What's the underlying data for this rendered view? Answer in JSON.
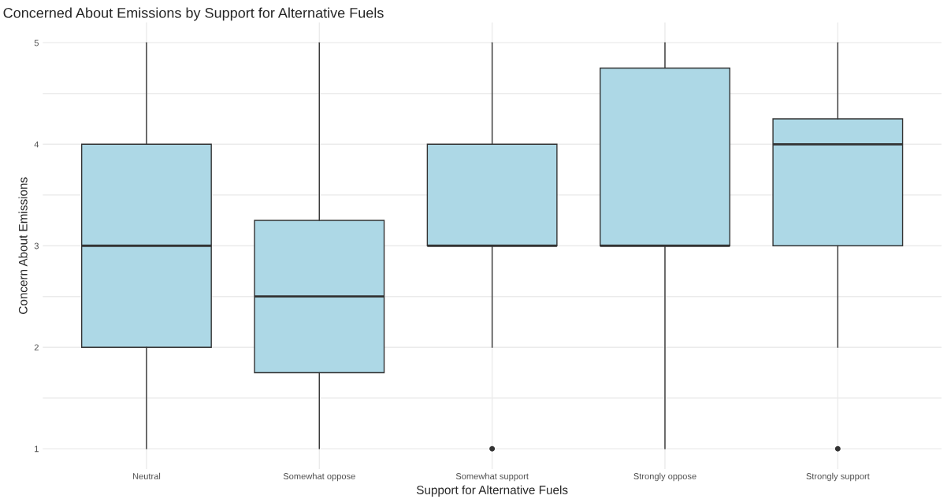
{
  "chart_data": {
    "type": "box",
    "title": "Concerned About Emissions by Support for Alternative Fuels",
    "xlabel": "Support for Alternative Fuels",
    "ylabel": "Concern About Emissions",
    "categories": [
      "Neutral",
      "Somewhat oppose",
      "Somewhat support",
      "Strongly oppose",
      "Strongly support"
    ],
    "boxes": [
      {
        "low": 1,
        "q1": 2,
        "median": 3,
        "q3": 4,
        "high": 5
      },
      {
        "low": 1,
        "q1": 1.75,
        "median": 2.5,
        "q3": 3.25,
        "high": 5
      },
      {
        "low": 2,
        "q1": 3,
        "median": 3,
        "q3": 4,
        "high": 5,
        "outliers": [
          1
        ]
      },
      {
        "low": 1,
        "q1": 3,
        "median": 3,
        "q3": 4.75,
        "high": 5
      },
      {
        "low": 2,
        "q1": 3,
        "median": 4,
        "q3": 4.25,
        "high": 5,
        "outliers": [
          1
        ]
      }
    ],
    "color": "#add8e6",
    "ylim": [
      0.8,
      5.2
    ],
    "yticks": [
      1,
      {
        "value": 1.5,
        "label": null
      },
      2,
      {
        "value": 2.5,
        "label": null
      },
      3,
      {
        "value": 3.5,
        "label": null
      },
      4,
      {
        "value": 4.5,
        "label": null
      },
      5
    ],
    "grid": true
  }
}
